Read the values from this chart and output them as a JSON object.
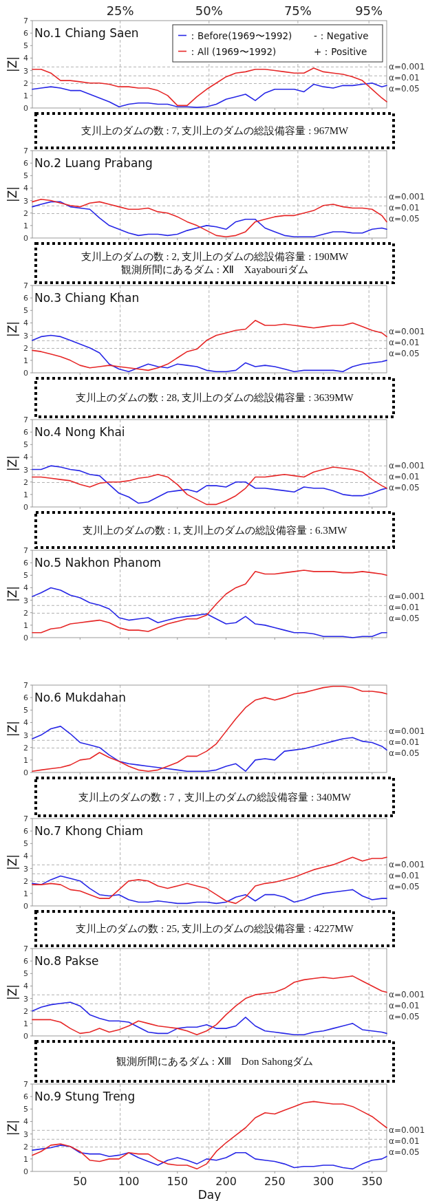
{
  "chart_data": [
    {
      "type": "line",
      "title": "No.1 Chiang Saen",
      "ylabel": "|Z|",
      "xlim": [
        1,
        365
      ],
      "xticks": [
        50,
        100,
        150,
        200,
        250,
        300,
        350
      ],
      "ylim": [
        0,
        7
      ],
      "yticks": [
        0,
        1,
        2,
        3,
        4,
        5,
        6,
        7
      ],
      "tick_labels": "y",
      "legend": "top right",
      "x": [
        1,
        10,
        20,
        30,
        40,
        50,
        60,
        70,
        80,
        90,
        100,
        110,
        120,
        130,
        140,
        150,
        160,
        170,
        180,
        190,
        200,
        210,
        220,
        230,
        240,
        250,
        260,
        270,
        280,
        290,
        300,
        310,
        320,
        330,
        340,
        350,
        360,
        365
      ],
      "series": [
        {
          "name": "：Before(1969〜1992)",
          "color": "#2626e6",
          "values": [
            1.5,
            1.6,
            1.7,
            1.6,
            1.4,
            1.4,
            1.1,
            0.8,
            0.5,
            0.1,
            0.3,
            0.4,
            0.4,
            0.3,
            0.3,
            0.1,
            0.1,
            0.05,
            0.1,
            0.3,
            0.7,
            0.9,
            1.1,
            0.6,
            1.2,
            1.5,
            1.5,
            1.5,
            1.3,
            1.9,
            1.7,
            1.6,
            1.8,
            1.8,
            1.9,
            2.0,
            1.7,
            1.8
          ]
        },
        {
          "name": "：All (1969〜1992)",
          "color": "#e62626",
          "values": [
            3.1,
            3.1,
            2.8,
            2.2,
            2.2,
            2.1,
            2.0,
            2.0,
            1.9,
            1.7,
            1.7,
            1.6,
            1.6,
            1.4,
            1.0,
            0.2,
            0.2,
            0.9,
            1.5,
            2.0,
            2.5,
            2.8,
            2.9,
            3.1,
            3.1,
            3.0,
            2.9,
            2.8,
            2.8,
            3.2,
            2.9,
            2.8,
            2.7,
            2.5,
            2.2,
            1.5,
            0.8,
            0.5
          ]
        }
      ],
      "ref_lines": [
        {
          "axis": "x",
          "value": 91.25,
          "color": "#b0b0b0",
          "line_style": "dashed"
        },
        {
          "axis": "x",
          "value": 182.5,
          "color": "#b0b0b0",
          "line_style": "dashed"
        },
        {
          "axis": "x",
          "value": 273.75,
          "color": "#b0b0b0",
          "line_style": "dashed"
        },
        {
          "axis": "x",
          "value": 346.75,
          "color": "#b0b0b0",
          "line_style": "dashed"
        },
        {
          "axis": "y",
          "value": 3.29,
          "color": "#b0b0b0",
          "line_style": "dashed"
        },
        {
          "axis": "y",
          "value": 2.576,
          "color": "#b0b0b0",
          "line_style": "dashed"
        },
        {
          "axis": "y",
          "value": 1.96,
          "color": "#b0b0b0",
          "line_style": "dashed"
        }
      ],
      "annotations": [
        "-：Negative",
        "+：Positive",
        "支川上のダムの数 : 7,  支川上のダムの総設備容量 : 967MW",
        {
          "text": "25%",
          "x": 91.25,
          "y": 7
        },
        {
          "text": "50%",
          "x": 182.5,
          "y": 7
        },
        {
          "text": "75%",
          "x": 273.75,
          "y": 7
        },
        {
          "text": "95%",
          "x": 346.75,
          "y": 7
        },
        {
          "text": "α=0.001",
          "x": 365,
          "y": 3.29
        },
        {
          "text": "α=0.01",
          "x": 365,
          "y": 2.576
        },
        {
          "text": "α=0.05",
          "x": 365,
          "y": 1.96
        }
      ]
    },
    {
      "type": "line",
      "title": "No.2 Luang Prabang",
      "ylabel": "|Z|",
      "xlim": [
        1,
        365
      ],
      "xticks": [
        50,
        100,
        150,
        200,
        250,
        300,
        350
      ],
      "ylim": [
        0,
        7
      ],
      "yticks": [
        0,
        1,
        2,
        3,
        4,
        5,
        6,
        7
      ],
      "tick_labels": "y",
      "x": [
        1,
        10,
        20,
        30,
        40,
        50,
        60,
        70,
        80,
        90,
        100,
        110,
        120,
        130,
        140,
        150,
        160,
        170,
        180,
        190,
        200,
        210,
        220,
        230,
        240,
        250,
        260,
        270,
        280,
        290,
        300,
        310,
        320,
        330,
        340,
        350,
        360,
        365
      ],
      "series": [
        {
          "color": "#2626e6",
          "values": [
            2.5,
            2.7,
            2.9,
            2.9,
            2.5,
            2.4,
            2.3,
            1.6,
            1.0,
            0.7,
            0.4,
            0.2,
            0.3,
            0.3,
            0.2,
            0.3,
            0.6,
            0.8,
            1.0,
            0.9,
            0.7,
            1.3,
            1.5,
            1.5,
            0.8,
            0.5,
            0.2,
            0.1,
            0.1,
            0.1,
            0.3,
            0.5,
            0.5,
            0.4,
            0.4,
            0.7,
            0.8,
            0.7
          ]
        },
        {
          "color": "#e62626",
          "values": [
            2.9,
            3.1,
            3.0,
            2.8,
            2.6,
            2.5,
            2.8,
            2.9,
            2.7,
            2.5,
            2.3,
            2.3,
            2.4,
            2.1,
            2.0,
            1.7,
            1.3,
            1.0,
            0.6,
            0.2,
            0.1,
            0.2,
            0.5,
            1.3,
            1.5,
            1.7,
            1.8,
            1.8,
            2.0,
            2.2,
            2.6,
            2.7,
            2.5,
            2.4,
            2.4,
            2.3,
            1.8,
            1.3
          ]
        }
      ],
      "ref_lines": [
        {
          "axis": "x",
          "value": 91.25,
          "color": "#b0b0b0",
          "line_style": "dashed"
        },
        {
          "axis": "x",
          "value": 182.5,
          "color": "#b0b0b0",
          "line_style": "dashed"
        },
        {
          "axis": "x",
          "value": 273.75,
          "color": "#b0b0b0",
          "line_style": "dashed"
        },
        {
          "axis": "x",
          "value": 346.75,
          "color": "#b0b0b0",
          "line_style": "dashed"
        },
        {
          "axis": "y",
          "value": 3.29,
          "color": "#b0b0b0",
          "line_style": "dashed"
        },
        {
          "axis": "y",
          "value": 2.576,
          "color": "#b0b0b0",
          "line_style": "dashed"
        },
        {
          "axis": "y",
          "value": 1.96,
          "color": "#b0b0b0",
          "line_style": "dashed"
        }
      ],
      "annotations": [
        "支川上のダムの数 : 2,  支川上のダムの総設備容量 : 190MW",
        "観測所間にあるダム : Ⅻ　Xayabouriダム",
        {
          "text": "α=0.001",
          "x": 365,
          "y": 3.29
        },
        {
          "text": "α=0.01",
          "x": 365,
          "y": 2.576
        },
        {
          "text": "α=0.05",
          "x": 365,
          "y": 1.96
        }
      ]
    },
    {
      "type": "line",
      "title": "No.3 Chiang Khan",
      "ylabel": "|Z|",
      "xlim": [
        1,
        365
      ],
      "xticks": [
        50,
        100,
        150,
        200,
        250,
        300,
        350
      ],
      "ylim": [
        0,
        7
      ],
      "yticks": [
        0,
        1,
        2,
        3,
        4,
        5,
        6,
        7
      ],
      "tick_labels": "y",
      "x": [
        1,
        10,
        20,
        30,
        40,
        50,
        60,
        70,
        80,
        90,
        100,
        110,
        120,
        130,
        140,
        150,
        160,
        170,
        180,
        190,
        200,
        210,
        220,
        230,
        240,
        250,
        260,
        270,
        280,
        290,
        300,
        310,
        320,
        330,
        340,
        350,
        360,
        365
      ],
      "series": [
        {
          "color": "#2626e6",
          "values": [
            2.6,
            2.9,
            3.0,
            2.9,
            2.6,
            2.3,
            2.0,
            1.6,
            0.7,
            0.3,
            0.1,
            0.4,
            0.7,
            0.5,
            0.4,
            0.7,
            0.6,
            0.5,
            0.2,
            0.1,
            0.1,
            0.2,
            0.8,
            0.5,
            0.6,
            0.5,
            0.3,
            0.1,
            0.2,
            0.2,
            0.2,
            0.2,
            0.1,
            0.5,
            0.7,
            0.8,
            0.9,
            1.0
          ]
        },
        {
          "color": "#e62626",
          "values": [
            1.8,
            1.7,
            1.5,
            1.3,
            1.0,
            0.6,
            0.4,
            0.5,
            0.6,
            0.5,
            0.4,
            0.3,
            0.2,
            0.4,
            0.7,
            1.2,
            1.7,
            1.9,
            2.6,
            3.0,
            3.2,
            3.4,
            3.5,
            4.2,
            3.8,
            3.8,
            3.9,
            3.8,
            3.7,
            3.6,
            3.7,
            3.8,
            3.8,
            4.0,
            3.7,
            3.4,
            3.2,
            2.9
          ]
        }
      ],
      "ref_lines": [
        {
          "axis": "x",
          "value": 91.25,
          "color": "#b0b0b0",
          "line_style": "dashed"
        },
        {
          "axis": "x",
          "value": 182.5,
          "color": "#b0b0b0",
          "line_style": "dashed"
        },
        {
          "axis": "x",
          "value": 273.75,
          "color": "#b0b0b0",
          "line_style": "dashed"
        },
        {
          "axis": "x",
          "value": 346.75,
          "color": "#b0b0b0",
          "line_style": "dashed"
        },
        {
          "axis": "y",
          "value": 3.29,
          "color": "#b0b0b0",
          "line_style": "dashed"
        },
        {
          "axis": "y",
          "value": 2.576,
          "color": "#b0b0b0",
          "line_style": "dashed"
        },
        {
          "axis": "y",
          "value": 1.96,
          "color": "#b0b0b0",
          "line_style": "dashed"
        }
      ],
      "annotations": [
        "支川上のダムの数 : 28,  支川上のダムの総設備容量 : 3639MW",
        {
          "text": "α=0.001",
          "x": 365,
          "y": 3.29
        },
        {
          "text": "α=0.01",
          "x": 365,
          "y": 2.576
        },
        {
          "text": "α=0.05",
          "x": 365,
          "y": 1.96
        }
      ]
    },
    {
      "type": "line",
      "title": "No.4 Nong Khai",
      "ylabel": "|Z|",
      "xlim": [
        1,
        365
      ],
      "xticks": [
        50,
        100,
        150,
        200,
        250,
        300,
        350
      ],
      "ylim": [
        0,
        7
      ],
      "yticks": [
        0,
        1,
        2,
        3,
        4,
        5,
        6,
        7
      ],
      "tick_labels": "y",
      "x": [
        1,
        10,
        20,
        30,
        40,
        50,
        60,
        70,
        80,
        90,
        100,
        110,
        120,
        130,
        140,
        150,
        160,
        170,
        180,
        190,
        200,
        210,
        220,
        230,
        240,
        250,
        260,
        270,
        280,
        290,
        300,
        310,
        320,
        330,
        340,
        350,
        360,
        365
      ],
      "series": [
        {
          "color": "#2626e6",
          "values": [
            3.0,
            3.0,
            3.3,
            3.2,
            3.0,
            2.9,
            2.6,
            2.5,
            1.8,
            1.1,
            0.8,
            0.3,
            0.4,
            0.8,
            1.2,
            1.3,
            1.4,
            1.2,
            1.7,
            1.7,
            1.6,
            2.0,
            2.0,
            1.5,
            1.5,
            1.4,
            1.3,
            1.2,
            1.6,
            1.5,
            1.5,
            1.3,
            1.0,
            0.9,
            0.9,
            1.1,
            1.4,
            1.5
          ]
        },
        {
          "color": "#e62626",
          "values": [
            2.4,
            2.4,
            2.3,
            2.2,
            2.1,
            1.8,
            1.6,
            1.9,
            2.0,
            2.0,
            2.1,
            2.3,
            2.4,
            2.6,
            2.4,
            1.8,
            1.0,
            0.6,
            0.2,
            0.2,
            0.5,
            0.9,
            1.5,
            2.4,
            2.4,
            2.5,
            2.6,
            2.5,
            2.4,
            2.8,
            3.0,
            3.2,
            3.1,
            3.0,
            2.8,
            2.2,
            1.7,
            1.5
          ]
        }
      ],
      "ref_lines": [
        {
          "axis": "x",
          "value": 91.25,
          "color": "#b0b0b0",
          "line_style": "dashed"
        },
        {
          "axis": "x",
          "value": 182.5,
          "color": "#b0b0b0",
          "line_style": "dashed"
        },
        {
          "axis": "x",
          "value": 273.75,
          "color": "#b0b0b0",
          "line_style": "dashed"
        },
        {
          "axis": "x",
          "value": 346.75,
          "color": "#b0b0b0",
          "line_style": "dashed"
        },
        {
          "axis": "y",
          "value": 3.29,
          "color": "#b0b0b0",
          "line_style": "dashed"
        },
        {
          "axis": "y",
          "value": 2.576,
          "color": "#b0b0b0",
          "line_style": "dashed"
        },
        {
          "axis": "y",
          "value": 1.96,
          "color": "#b0b0b0",
          "line_style": "dashed"
        }
      ],
      "annotations": [
        "支川上のダムの数 : 1,  支川上のダムの総設備容量 : 6.3MW",
        {
          "text": "α=0.001",
          "x": 365,
          "y": 3.29
        },
        {
          "text": "α=0.01",
          "x": 365,
          "y": 2.576
        },
        {
          "text": "α=0.05",
          "x": 365,
          "y": 1.96
        }
      ]
    },
    {
      "type": "line",
      "title": "No.5 Nakhon Phanom",
      "ylabel": "|Z|",
      "xlim": [
        1,
        365
      ],
      "xticks": [
        50,
        100,
        150,
        200,
        250,
        300,
        350
      ],
      "ylim": [
        0,
        7
      ],
      "yticks": [
        0,
        1,
        2,
        3,
        4,
        5,
        6,
        7
      ],
      "tick_labels": "y",
      "x": [
        1,
        10,
        20,
        30,
        40,
        50,
        60,
        70,
        80,
        90,
        100,
        110,
        120,
        130,
        140,
        150,
        160,
        170,
        180,
        190,
        200,
        210,
        220,
        230,
        240,
        250,
        260,
        270,
        280,
        290,
        300,
        310,
        320,
        330,
        340,
        350,
        360,
        365
      ],
      "series": [
        {
          "color": "#2626e6",
          "values": [
            3.3,
            3.6,
            4.0,
            3.8,
            3.4,
            3.2,
            2.8,
            2.6,
            2.3,
            1.6,
            1.4,
            1.5,
            1.6,
            1.2,
            1.4,
            1.6,
            1.7,
            1.8,
            1.9,
            1.5,
            1.1,
            1.2,
            1.7,
            1.1,
            1.0,
            0.8,
            0.6,
            0.4,
            0.4,
            0.3,
            0.1,
            0.1,
            0.1,
            0.0,
            0.1,
            0.1,
            0.4,
            0.4
          ]
        },
        {
          "color": "#e62626",
          "values": [
            0.4,
            0.4,
            0.7,
            0.8,
            1.1,
            1.2,
            1.3,
            1.4,
            1.2,
            0.8,
            0.6,
            0.6,
            0.5,
            0.8,
            1.1,
            1.3,
            1.5,
            1.5,
            1.8,
            2.7,
            3.5,
            4.0,
            4.3,
            5.3,
            5.1,
            5.1,
            5.2,
            5.3,
            5.4,
            5.3,
            5.3,
            5.3,
            5.2,
            5.2,
            5.3,
            5.2,
            5.1,
            5.0
          ]
        }
      ],
      "ref_lines": [
        {
          "axis": "x",
          "value": 91.25,
          "color": "#b0b0b0",
          "line_style": "dashed"
        },
        {
          "axis": "x",
          "value": 182.5,
          "color": "#b0b0b0",
          "line_style": "dashed"
        },
        {
          "axis": "x",
          "value": 273.75,
          "color": "#b0b0b0",
          "line_style": "dashed"
        },
        {
          "axis": "x",
          "value": 346.75,
          "color": "#b0b0b0",
          "line_style": "dashed"
        },
        {
          "axis": "y",
          "value": 3.29,
          "color": "#b0b0b0",
          "line_style": "dashed"
        },
        {
          "axis": "y",
          "value": 2.576,
          "color": "#b0b0b0",
          "line_style": "dashed"
        },
        {
          "axis": "y",
          "value": 1.96,
          "color": "#b0b0b0",
          "line_style": "dashed"
        }
      ],
      "annotations": [
        {
          "text": "α=0.001",
          "x": 365,
          "y": 3.29
        },
        {
          "text": "α=0.01",
          "x": 365,
          "y": 2.576
        },
        {
          "text": "α=0.05",
          "x": 365,
          "y": 1.96
        }
      ]
    },
    {
      "type": "line",
      "title": "No.6 Mukdahan",
      "ylabel": "|Z|",
      "xlim": [
        1,
        365
      ],
      "xticks": [
        50,
        100,
        150,
        200,
        250,
        300,
        350
      ],
      "ylim": [
        0,
        7
      ],
      "yticks": [
        0,
        1,
        2,
        3,
        4,
        5,
        6,
        7
      ],
      "tick_labels": "y",
      "x": [
        1,
        10,
        20,
        30,
        40,
        50,
        60,
        70,
        80,
        90,
        100,
        110,
        120,
        130,
        140,
        150,
        160,
        170,
        180,
        190,
        200,
        210,
        220,
        230,
        240,
        250,
        260,
        270,
        280,
        290,
        300,
        310,
        320,
        330,
        340,
        350,
        360,
        365
      ],
      "series": [
        {
          "color": "#2626e6",
          "values": [
            2.7,
            3.0,
            3.5,
            3.7,
            3.1,
            2.4,
            2.2,
            2.0,
            1.4,
            0.9,
            0.7,
            0.6,
            0.5,
            0.4,
            0.3,
            0.2,
            0.1,
            0.1,
            0.1,
            0.2,
            0.5,
            0.7,
            0.1,
            1.0,
            1.1,
            1.0,
            1.7,
            1.8,
            1.9,
            2.1,
            2.3,
            2.5,
            2.7,
            2.8,
            2.5,
            2.4,
            2.1,
            1.8
          ]
        },
        {
          "color": "#e62626",
          "values": [
            0.1,
            0.2,
            0.3,
            0.4,
            0.6,
            1.0,
            1.1,
            1.6,
            1.2,
            0.9,
            0.5,
            0.2,
            0.1,
            0.2,
            0.5,
            0.8,
            1.3,
            1.3,
            1.7,
            2.3,
            3.3,
            4.3,
            5.2,
            5.8,
            6.0,
            5.8,
            6.0,
            6.3,
            6.4,
            6.6,
            6.8,
            6.9,
            6.9,
            6.8,
            6.5,
            6.5,
            6.4,
            6.3
          ]
        }
      ],
      "ref_lines": [
        {
          "axis": "x",
          "value": 91.25,
          "color": "#b0b0b0",
          "line_style": "dashed"
        },
        {
          "axis": "x",
          "value": 182.5,
          "color": "#b0b0b0",
          "line_style": "dashed"
        },
        {
          "axis": "x",
          "value": 273.75,
          "color": "#b0b0b0",
          "line_style": "dashed"
        },
        {
          "axis": "x",
          "value": 346.75,
          "color": "#b0b0b0",
          "line_style": "dashed"
        },
        {
          "axis": "y",
          "value": 3.29,
          "color": "#b0b0b0",
          "line_style": "dashed"
        },
        {
          "axis": "y",
          "value": 2.576,
          "color": "#b0b0b0",
          "line_style": "dashed"
        },
        {
          "axis": "y",
          "value": 1.96,
          "color": "#b0b0b0",
          "line_style": "dashed"
        }
      ],
      "annotations": [
        "支川上のダムの数 :  7，支川上のダムの総設備容量 : 340MW",
        {
          "text": "α=0.001",
          "x": 365,
          "y": 3.29
        },
        {
          "text": "α=0.01",
          "x": 365,
          "y": 2.576
        },
        {
          "text": "α=0.05",
          "x": 365,
          "y": 1.96
        }
      ]
    },
    {
      "type": "line",
      "title": "No.7 Khong Chiam",
      "ylabel": "|Z|",
      "xlim": [
        1,
        365
      ],
      "xticks": [
        50,
        100,
        150,
        200,
        250,
        300,
        350
      ],
      "ylim": [
        0,
        7
      ],
      "yticks": [
        0,
        1,
        2,
        3,
        4,
        5,
        6,
        7
      ],
      "tick_labels": "y",
      "x": [
        1,
        10,
        20,
        30,
        40,
        50,
        60,
        70,
        80,
        90,
        100,
        110,
        120,
        130,
        140,
        150,
        160,
        170,
        180,
        190,
        200,
        210,
        220,
        230,
        240,
        250,
        260,
        270,
        280,
        290,
        300,
        310,
        320,
        330,
        340,
        350,
        360,
        365
      ],
      "series": [
        {
          "color": "#2626e6",
          "values": [
            1.8,
            1.7,
            2.1,
            2.4,
            2.2,
            2.0,
            1.4,
            0.9,
            0.8,
            0.9,
            0.5,
            0.3,
            0.3,
            0.4,
            0.3,
            0.2,
            0.2,
            0.3,
            0.3,
            0.2,
            0.3,
            0.7,
            0.9,
            0.4,
            0.9,
            0.9,
            0.7,
            0.3,
            0.5,
            0.8,
            1.0,
            1.1,
            1.2,
            1.3,
            0.8,
            0.5,
            0.6,
            0.6
          ]
        },
        {
          "color": "#e62626",
          "values": [
            1.7,
            1.7,
            1.8,
            1.7,
            1.3,
            1.2,
            0.9,
            0.6,
            0.6,
            1.3,
            2.0,
            2.1,
            2.0,
            1.6,
            1.4,
            1.6,
            1.8,
            1.6,
            1.4,
            0.9,
            0.4,
            0.2,
            0.7,
            1.6,
            1.8,
            1.9,
            2.1,
            2.3,
            2.6,
            2.9,
            3.1,
            3.3,
            3.6,
            3.9,
            3.6,
            3.8,
            3.8,
            3.9
          ]
        }
      ],
      "ref_lines": [
        {
          "axis": "x",
          "value": 91.25,
          "color": "#b0b0b0",
          "line_style": "dashed"
        },
        {
          "axis": "x",
          "value": 182.5,
          "color": "#b0b0b0",
          "line_style": "dashed"
        },
        {
          "axis": "x",
          "value": 273.75,
          "color": "#b0b0b0",
          "line_style": "dashed"
        },
        {
          "axis": "x",
          "value": 346.75,
          "color": "#b0b0b0",
          "line_style": "dashed"
        },
        {
          "axis": "y",
          "value": 3.29,
          "color": "#b0b0b0",
          "line_style": "dashed"
        },
        {
          "axis": "y",
          "value": 2.576,
          "color": "#b0b0b0",
          "line_style": "dashed"
        },
        {
          "axis": "y",
          "value": 1.96,
          "color": "#b0b0b0",
          "line_style": "dashed"
        }
      ],
      "annotations": [
        "支川上のダムの数 : 25,  支川上のダムの総設備容量 : 4227MW",
        {
          "text": "α=0.001",
          "x": 365,
          "y": 3.29
        },
        {
          "text": "α=0.01",
          "x": 365,
          "y": 2.576
        },
        {
          "text": "α=0.05",
          "x": 365,
          "y": 1.96
        }
      ]
    },
    {
      "type": "line",
      "title": "No.8 Pakse",
      "ylabel": "|Z|",
      "xlim": [
        1,
        365
      ],
      "xticks": [
        50,
        100,
        150,
        200,
        250,
        300,
        350
      ],
      "ylim": [
        0,
        7
      ],
      "yticks": [
        0,
        1,
        2,
        3,
        4,
        5,
        6,
        7
      ],
      "tick_labels": "y",
      "x": [
        1,
        10,
        20,
        30,
        40,
        50,
        60,
        70,
        80,
        90,
        100,
        110,
        120,
        130,
        140,
        150,
        160,
        170,
        180,
        190,
        200,
        210,
        220,
        230,
        240,
        250,
        260,
        270,
        280,
        290,
        300,
        310,
        320,
        330,
        340,
        350,
        360,
        365
      ],
      "series": [
        {
          "color": "#2626e6",
          "values": [
            2.0,
            2.3,
            2.5,
            2.6,
            2.7,
            2.4,
            1.7,
            1.4,
            1.2,
            1.2,
            1.1,
            0.7,
            0.3,
            0.2,
            0.2,
            0.6,
            0.7,
            0.7,
            0.9,
            0.6,
            0.6,
            0.8,
            1.5,
            0.8,
            0.4,
            0.3,
            0.2,
            0.1,
            0.1,
            0.3,
            0.4,
            0.6,
            0.8,
            1.0,
            0.5,
            0.4,
            0.3,
            0.2
          ]
        },
        {
          "color": "#e62626",
          "values": [
            1.3,
            1.3,
            1.3,
            1.1,
            0.6,
            0.2,
            0.3,
            0.6,
            0.3,
            0.5,
            0.8,
            1.2,
            1.0,
            0.8,
            0.7,
            0.6,
            0.4,
            0.1,
            0.4,
            0.9,
            1.7,
            2.4,
            3.0,
            3.3,
            3.4,
            3.5,
            3.8,
            4.3,
            4.5,
            4.6,
            4.7,
            4.6,
            4.7,
            4.8,
            4.4,
            4.0,
            3.6,
            3.5
          ]
        }
      ],
      "ref_lines": [
        {
          "axis": "x",
          "value": 91.25,
          "color": "#b0b0b0",
          "line_style": "dashed"
        },
        {
          "axis": "x",
          "value": 182.5,
          "color": "#b0b0b0",
          "line_style": "dashed"
        },
        {
          "axis": "x",
          "value": 273.75,
          "color": "#b0b0b0",
          "line_style": "dashed"
        },
        {
          "axis": "x",
          "value": 346.75,
          "color": "#b0b0b0",
          "line_style": "dashed"
        },
        {
          "axis": "y",
          "value": 3.29,
          "color": "#b0b0b0",
          "line_style": "dashed"
        },
        {
          "axis": "y",
          "value": 2.576,
          "color": "#b0b0b0",
          "line_style": "dashed"
        },
        {
          "axis": "y",
          "value": 1.96,
          "color": "#b0b0b0",
          "line_style": "dashed"
        }
      ],
      "annotations": [
        "観測所間にあるダム : ⅩⅢ　Don Sahongダム",
        {
          "text": "α=0.001",
          "x": 365,
          "y": 3.29
        },
        {
          "text": "α=0.01",
          "x": 365,
          "y": 2.576
        },
        {
          "text": "α=0.05",
          "x": 365,
          "y": 1.96
        }
      ]
    },
    {
      "type": "line",
      "title": "No.9 Stung Treng",
      "ylabel": "|Z|",
      "xlabel": "Day",
      "xlim": [
        1,
        365
      ],
      "xticks": [
        50,
        100,
        150,
        200,
        250,
        300,
        350
      ],
      "ylim": [
        0,
        7
      ],
      "yticks": [
        0,
        1,
        2,
        3,
        4,
        5,
        6,
        7
      ],
      "x": [
        1,
        10,
        20,
        30,
        40,
        50,
        60,
        70,
        80,
        90,
        100,
        110,
        120,
        130,
        140,
        150,
        160,
        170,
        180,
        190,
        200,
        210,
        220,
        230,
        240,
        250,
        260,
        270,
        280,
        290,
        300,
        310,
        320,
        330,
        340,
        350,
        360,
        365
      ],
      "series": [
        {
          "color": "#2626e6",
          "values": [
            1.7,
            1.8,
            1.9,
            2.1,
            2.0,
            1.5,
            1.4,
            1.4,
            1.2,
            1.3,
            1.5,
            1.1,
            0.8,
            0.5,
            0.9,
            1.1,
            0.9,
            0.6,
            1.0,
            0.9,
            1.1,
            1.5,
            1.5,
            1.0,
            0.9,
            0.8,
            0.6,
            0.3,
            0.4,
            0.4,
            0.5,
            0.5,
            0.3,
            0.2,
            0.6,
            0.9,
            1.0,
            1.2
          ]
        },
        {
          "color": "#e62626",
          "values": [
            1.3,
            1.6,
            2.1,
            2.2,
            2.0,
            1.6,
            0.9,
            0.8,
            1.0,
            1.0,
            1.5,
            1.4,
            1.4,
            0.9,
            0.6,
            0.5,
            0.5,
            0.2,
            0.6,
            1.6,
            2.3,
            2.9,
            3.5,
            4.3,
            4.7,
            4.6,
            4.9,
            5.2,
            5.5,
            5.6,
            5.5,
            5.4,
            5.4,
            5.2,
            4.8,
            4.4,
            3.8,
            3.5
          ]
        }
      ],
      "ref_lines": [
        {
          "axis": "x",
          "value": 91.25,
          "color": "#b0b0b0",
          "line_style": "dashed"
        },
        {
          "axis": "x",
          "value": 182.5,
          "color": "#b0b0b0",
          "line_style": "dashed"
        },
        {
          "axis": "x",
          "value": 273.75,
          "color": "#b0b0b0",
          "line_style": "dashed"
        },
        {
          "axis": "x",
          "value": 346.75,
          "color": "#b0b0b0",
          "line_style": "dashed"
        },
        {
          "axis": "y",
          "value": 3.29,
          "color": "#b0b0b0",
          "line_style": "dashed"
        },
        {
          "axis": "y",
          "value": 2.576,
          "color": "#b0b0b0",
          "line_style": "dashed"
        },
        {
          "axis": "y",
          "value": 1.96,
          "color": "#b0b0b0",
          "line_style": "dashed"
        }
      ],
      "annotations": [
        {
          "text": "α=0.001",
          "x": 365,
          "y": 3.29
        },
        {
          "text": "α=0.01",
          "x": 365,
          "y": 2.576
        },
        {
          "text": "α=0.05",
          "x": 365,
          "y": 1.96
        }
      ]
    }
  ]
}
